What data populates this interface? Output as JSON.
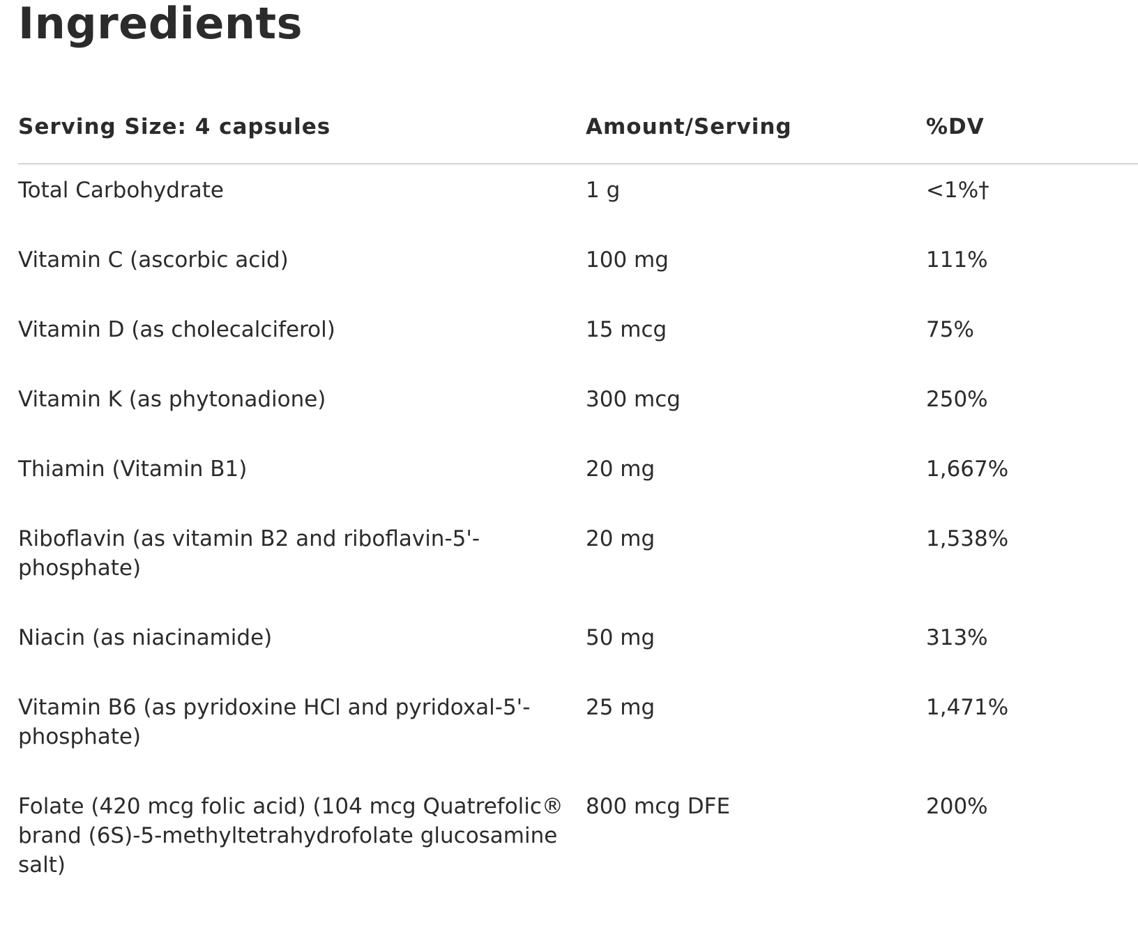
{
  "page_title": "Ingredients",
  "table": {
    "headers": {
      "serving": "Serving Size: 4 capsules",
      "amount": "Amount/Serving",
      "dv": "%DV"
    },
    "rows": [
      {
        "name": "Total Carbohydrate",
        "amount": "1 g",
        "dv": "<1%†"
      },
      {
        "name": "Vitamin C (ascorbic acid)",
        "amount": "100 mg",
        "dv": "111%"
      },
      {
        "name": "Vitamin D (as cholecalciferol)",
        "amount": "15 mcg",
        "dv": "75%"
      },
      {
        "name": "Vitamin K (as phytonadione)",
        "amount": "300 mcg",
        "dv": "250%"
      },
      {
        "name": "Thiamin (Vitamin B1)",
        "amount": "20 mg",
        "dv": "1,667%"
      },
      {
        "name": "Riboflavin (as vitamin B2 and riboflavin-5'-phosphate)",
        "amount": "20 mg",
        "dv": "1,538%"
      },
      {
        "name": "Niacin (as niacinamide)",
        "amount": "50 mg",
        "dv": "313%"
      },
      {
        "name": "Vitamin B6 (as pyridoxine HCl and pyridoxal-5'-phosphate)",
        "amount": "25 mg",
        "dv": "1,471%"
      },
      {
        "name": "Folate (420 mcg folic acid) (104 mcg Quatrefolic® brand (6S)-5-methyltetrahydrofolate glucosamine salt)",
        "amount": "800 mcg DFE",
        "dv": "200%"
      }
    ]
  }
}
